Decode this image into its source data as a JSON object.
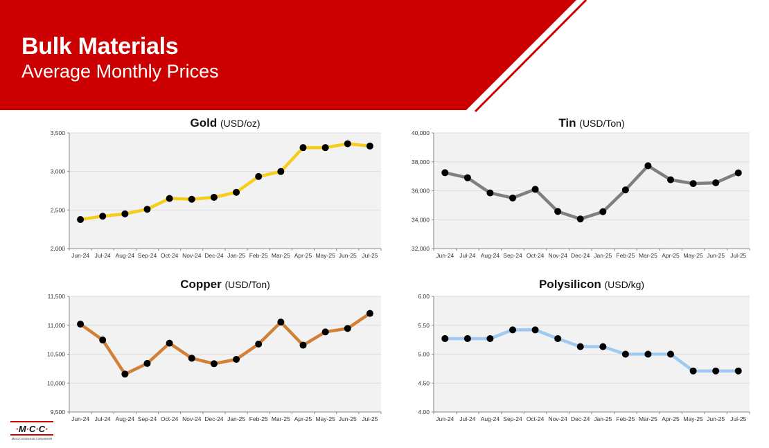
{
  "header": {
    "title": "Bulk Materials",
    "subtitle": "Average Monthly Prices"
  },
  "logo": {
    "text": "·M·C·C·",
    "tagline": "Micro Commercial Components"
  },
  "colors": {
    "banner": "#CC0000",
    "gold": "#F5CE1C",
    "tin": "#7F7F7F",
    "copper": "#D08038",
    "polysilicon": "#9FC9F0",
    "marker": "#000000",
    "plot_bg": "#F2F2F2"
  },
  "chart_data": [
    {
      "type": "line",
      "title": "Gold",
      "unit": "(USD/oz)",
      "categories": [
        "Jun-24",
        "Jul-24",
        "Aug-24",
        "Sep-24",
        "Oct-24",
        "Nov-24",
        "Dec-24",
        "Jan-25",
        "Feb-25",
        "Mar-25",
        "Apr-25",
        "May-25",
        "Jun-25",
        "Jul-25"
      ],
      "values": [
        2377,
        2420,
        2450,
        2510,
        2650,
        2640,
        2665,
        2730,
        2935,
        3000,
        3310,
        3310,
        3360,
        3330
      ],
      "ylim": [
        2000,
        3500
      ],
      "yticks": [
        "2,000",
        "2,500",
        "3,000",
        "3,500"
      ],
      "ytick_values": [
        2000,
        2500,
        3000,
        3500
      ],
      "color_key": "gold",
      "grid": true,
      "legend": "none"
    },
    {
      "type": "line",
      "title": "Tin",
      "unit": "(USD/Ton)",
      "categories": [
        "Jun-24",
        "Jul-24",
        "Aug-24",
        "Sep-24",
        "Oct-24",
        "Nov-24",
        "Dec-24",
        "Jan-25",
        "Feb-25",
        "Mar-25",
        "Apr-25",
        "May-25",
        "Jun-25",
        "Jul-25"
      ],
      "values": [
        37250,
        36900,
        35850,
        35500,
        36100,
        34570,
        34050,
        34550,
        36060,
        37730,
        36760,
        36500,
        36550,
        37240
      ],
      "ylim": [
        32000,
        40000
      ],
      "yticks": [
        "32,000",
        "34,000",
        "36,000",
        "38,000",
        "40,000"
      ],
      "ytick_values": [
        32000,
        34000,
        36000,
        38000,
        40000
      ],
      "color_key": "tin",
      "grid": true,
      "legend": "none"
    },
    {
      "type": "line",
      "title": "Copper",
      "unit": "(USD/Ton)",
      "categories": [
        "Jun-24",
        "Jul-24",
        "Aug-24",
        "Sep-24",
        "Oct-24",
        "Nov-24",
        "Dec-24",
        "Jan-25",
        "Feb-25",
        "Mar-25",
        "Apr-25",
        "May-25",
        "Jun-25",
        "Jul-25"
      ],
      "values": [
        11020,
        10745,
        10155,
        10340,
        10690,
        10430,
        10335,
        10410,
        10675,
        11055,
        10655,
        10885,
        10945,
        11205
      ],
      "ylim": [
        9500,
        11500
      ],
      "yticks": [
        "9,500",
        "10,000",
        "10,500",
        "11,000",
        "11,500"
      ],
      "ytick_values": [
        9500,
        10000,
        10500,
        11000,
        11500
      ],
      "color_key": "copper",
      "grid": true,
      "legend": "none"
    },
    {
      "type": "line",
      "title": "Polysilicon",
      "unit": "(USD/kg)",
      "categories": [
        "Jun-24",
        "Jul-24",
        "Aug-24",
        "Sep-24",
        "Oct-24",
        "Nov-24",
        "Dec-24",
        "Jan-25",
        "Feb-25",
        "Mar-25",
        "Apr-25",
        "May-25",
        "Jun-25",
        "Jul-25"
      ],
      "values": [
        5.27,
        5.27,
        5.27,
        5.42,
        5.42,
        5.27,
        5.13,
        5.13,
        5.0,
        5.0,
        5.0,
        4.71,
        4.71,
        4.71
      ],
      "ylim": [
        4.0,
        6.0
      ],
      "yticks": [
        "4.00",
        "4.50",
        "5.00",
        "5.50",
        "6.00"
      ],
      "ytick_values": [
        4.0,
        4.5,
        5.0,
        5.5,
        6.0
      ],
      "color_key": "polysilicon",
      "grid": true,
      "legend": "none"
    }
  ]
}
